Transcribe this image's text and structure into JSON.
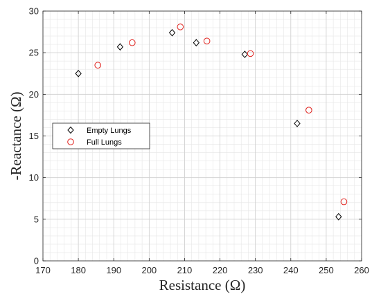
{
  "chart_data": {
    "type": "scatter",
    "xlabel": "Resistance (Ω)",
    "ylabel": "-Reactance (Ω)",
    "xlim": [
      170,
      260
    ],
    "ylim": [
      0,
      30
    ],
    "x_ticks": [
      170,
      180,
      190,
      200,
      210,
      220,
      230,
      240,
      250,
      260
    ],
    "y_ticks": [
      0,
      5,
      10,
      15,
      20,
      25,
      30
    ],
    "grid": true,
    "minor_grid": true,
    "legend_position": "middle-left",
    "series": [
      {
        "name": "Empty Lungs",
        "marker": "diamond",
        "color": "#000000",
        "points": [
          {
            "x": 180.0,
            "y": 22.5
          },
          {
            "x": 191.8,
            "y": 25.7
          },
          {
            "x": 206.5,
            "y": 27.4
          },
          {
            "x": 213.3,
            "y": 26.2
          },
          {
            "x": 227.0,
            "y": 24.8
          },
          {
            "x": 241.8,
            "y": 16.5
          },
          {
            "x": 253.5,
            "y": 5.3
          }
        ]
      },
      {
        "name": "Full Lungs",
        "marker": "circle",
        "color": "#e0201b",
        "points": [
          {
            "x": 185.5,
            "y": 23.5
          },
          {
            "x": 195.2,
            "y": 26.2
          },
          {
            "x": 208.8,
            "y": 28.1
          },
          {
            "x": 216.3,
            "y": 26.4
          },
          {
            "x": 228.6,
            "y": 24.9
          },
          {
            "x": 245.1,
            "y": 18.1
          },
          {
            "x": 255.0,
            "y": 7.1
          }
        ]
      }
    ]
  }
}
